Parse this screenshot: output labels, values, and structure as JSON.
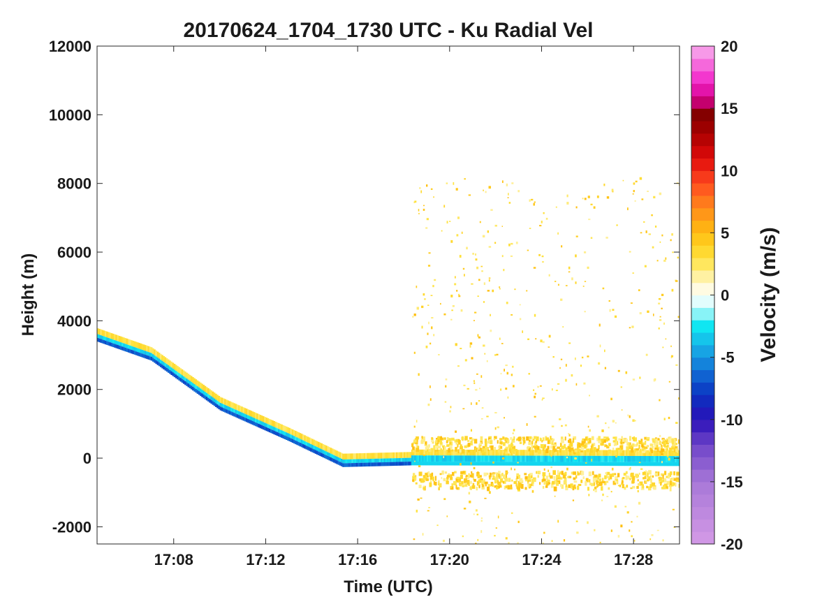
{
  "chart_data": {
    "type": "heatmap",
    "title": "20170624_1704_1730 UTC - Ku Radial Vel",
    "xlabel": "Time (UTC)",
    "ylabel": "Height (m)",
    "xlim": [
      "17:04:40",
      "17:30:00"
    ],
    "ylim": [
      -2500,
      12000
    ],
    "x_ticks": [
      "17:08",
      "17:12",
      "17:16",
      "17:20",
      "17:24",
      "17:28"
    ],
    "y_ticks": [
      -2000,
      0,
      2000,
      4000,
      6000,
      8000,
      10000,
      12000
    ],
    "grid": false,
    "colorbar": {
      "label": "Velocity (m/s)",
      "range": [
        -20,
        20
      ],
      "ticks": [
        -20,
        -15,
        -10,
        -5,
        0,
        5,
        10,
        15,
        20
      ],
      "levels": 40,
      "colormap_stops": [
        {
          "v": -20,
          "color": "#d49ae6"
        },
        {
          "v": -15,
          "color": "#a877d8"
        },
        {
          "v": -12,
          "color": "#6e44c8"
        },
        {
          "v": -10,
          "color": "#2a10b8"
        },
        {
          "v": -8,
          "color": "#0a32c0"
        },
        {
          "v": -6,
          "color": "#1272d6"
        },
        {
          "v": -4,
          "color": "#18b4e8"
        },
        {
          "v": -2.5,
          "color": "#10e6f2"
        },
        {
          "v": -1,
          "color": "#c4fafa"
        },
        {
          "v": 0,
          "color": "#ffffff"
        },
        {
          "v": 1,
          "color": "#fff6c4"
        },
        {
          "v": 3,
          "color": "#ffe23c"
        },
        {
          "v": 5,
          "color": "#ffbe10"
        },
        {
          "v": 7,
          "color": "#ff8a1a"
        },
        {
          "v": 9,
          "color": "#ff4a20"
        },
        {
          "v": 11,
          "color": "#e00a0a"
        },
        {
          "v": 13,
          "color": "#a80000"
        },
        {
          "v": 15,
          "color": "#780000"
        },
        {
          "v": 15.5,
          "color": "#c4006e"
        },
        {
          "v": 17,
          "color": "#f21ec8"
        },
        {
          "v": 20,
          "color": "#f8b2ee"
        }
      ]
    },
    "series": [
      {
        "feature": "descending aircraft track / surface return band (approx. center height)",
        "x": [
          "17:04:40",
          "17:07:00",
          "17:10:00",
          "17:13:00",
          "17:15:20",
          "17:18:20",
          "17:30:00"
        ],
        "y": [
          3500,
          2950,
          1500,
          600,
          -150,
          -100,
          -120
        ],
        "velocity_approx": [
          -5,
          -5,
          -5,
          -5,
          -4,
          -3,
          -3
        ]
      },
      {
        "feature": "noisy near-zero returns above/below surface after 17:18:20",
        "x_range": [
          "17:18:20",
          "17:30:00"
        ],
        "bands_y": [
          [
            250,
            650
          ],
          [
            -850,
            -350
          ]
        ],
        "velocity_approx": 2
      }
    ]
  }
}
